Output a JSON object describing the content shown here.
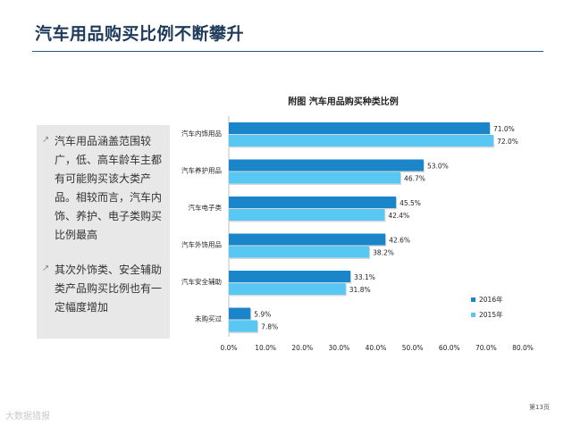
{
  "page": {
    "title": "汽车用品购买比例不断攀升",
    "page_number": "第13页",
    "watermark": "大数据猎报"
  },
  "left_panel": {
    "bullets": [
      {
        "icon": "arrow-icon",
        "text": "汽车用品涵盖范围较广，低、高车龄车主都有可能购买该大类产品。相较而言，汽车内饰、养护、电子类购买比例最高"
      },
      {
        "icon": "arrow-icon",
        "text": "其次外饰类、安全辅助类产品购买比例也有一定幅度增加"
      }
    ]
  },
  "colors": {
    "series_2016": "#1a86c9",
    "series_2015": "#58c7f3",
    "title_rule": "#2b5a86"
  },
  "chart_data": {
    "type": "bar",
    "orientation": "horizontal",
    "title": "附图 汽车用品购买种类比例",
    "categories": [
      "汽车内饰用品",
      "汽车养护用品",
      "汽车电子类",
      "汽车外饰用品",
      "汽车安全辅助",
      "未购买过"
    ],
    "series": [
      {
        "name": "2016年",
        "values": [
          71.0,
          53.0,
          45.5,
          42.6,
          33.1,
          5.9
        ],
        "labels": [
          "71.0%",
          "53.0%",
          "45.5%",
          "42.6%",
          "33.1%",
          "5.9%"
        ]
      },
      {
        "name": "2015年",
        "values": [
          72.0,
          46.7,
          42.4,
          38.2,
          31.8,
          7.8
        ],
        "labels": [
          "72.0%",
          "46.7%",
          "42.4%",
          "38.2%",
          "31.8%",
          "7.8%"
        ]
      }
    ],
    "xlim": [
      0,
      80
    ],
    "x_ticks": [
      "0.0%",
      "10.0%",
      "20.0%",
      "30.0%",
      "40.0%",
      "50.0%",
      "60.0%",
      "70.0%",
      "80.0%"
    ],
    "legend": "bottom-right",
    "grid": false
  }
}
